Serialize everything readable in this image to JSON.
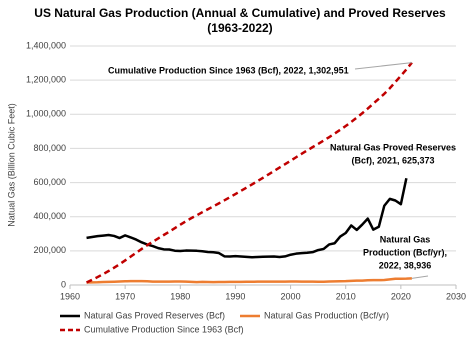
{
  "chart_data": {
    "type": "line",
    "title": [
      "US Natural Gas Production (Annual & Cumulative) and Proved Reserves",
      "(1963-2022)"
    ],
    "y_label": "Natual Gas (Billion Cubic Feet)",
    "x": [
      1963,
      1964,
      1965,
      1966,
      1967,
      1968,
      1969,
      1970,
      1971,
      1972,
      1973,
      1974,
      1975,
      1976,
      1977,
      1978,
      1979,
      1980,
      1981,
      1982,
      1983,
      1984,
      1985,
      1986,
      1987,
      1988,
      1989,
      1990,
      1991,
      1992,
      1993,
      1994,
      1995,
      1996,
      1997,
      1998,
      1999,
      2000,
      2001,
      2002,
      2003,
      2004,
      2005,
      2006,
      2007,
      2008,
      2009,
      2010,
      2011,
      2012,
      2013,
      2014,
      2015,
      2016,
      2017,
      2018,
      2019,
      2020,
      2021,
      2022
    ],
    "series": [
      {
        "name": "Natural Gas Proved Reserves (Bcf)",
        "color": "#000000",
        "dash": false,
        "values": [
          276151,
          281251,
          286469,
          289333,
          292908,
          287350,
          275109,
          290746,
          278806,
          266085,
          249950,
          237132,
          228200,
          216026,
          208878,
          208033,
          200997,
          199021,
          201730,
          201512,
          200247,
          197463,
          193369,
          191586,
          187211,
          168024,
          167116,
          169346,
          167062,
          165015,
          162415,
          163837,
          165146,
          166474,
          167223,
          164041,
          167406,
          177427,
          183460,
          186946,
          189044,
          192513,
          204385,
          211085,
          237726,
          244656,
          283879,
          304625,
          348809,
          322670,
          354034,
          388841,
          324273,
          341084,
          464292,
          504490,
          494911,
          473325,
          625373,
          null
        ]
      },
      {
        "name": "Natural Gas Production (Bcf/yr)",
        "color": "#ed7d31",
        "dash": false,
        "values": [
          15000,
          15500,
          16000,
          17200,
          18200,
          19300,
          20700,
          21900,
          22400,
          22500,
          22600,
          21600,
          20100,
          19900,
          20000,
          19700,
          20500,
          20200,
          19900,
          18500,
          16800,
          18200,
          17200,
          16900,
          17400,
          17900,
          18100,
          18600,
          18500,
          18700,
          18900,
          19700,
          19500,
          19800,
          19900,
          19900,
          19800,
          20200,
          20600,
          19900,
          19900,
          19500,
          18900,
          19400,
          20200,
          21100,
          21600,
          22400,
          24000,
          25300,
          25600,
          27500,
          28800,
          28500,
          29100,
          32700,
          36300,
          36500,
          37300,
          38936
        ]
      },
      {
        "name": "Cumulative Production Since 1963 (Bcf)",
        "color": "#c00000",
        "dash": true,
        "values": [
          15000,
          30500,
          46500,
          63700,
          81900,
          101200,
          121900,
          143800,
          166200,
          188700,
          211300,
          232900,
          253000,
          272900,
          292900,
          312600,
          333100,
          353300,
          373200,
          391700,
          408500,
          426700,
          443900,
          460800,
          478200,
          496100,
          514200,
          532800,
          551300,
          570000,
          588900,
          608600,
          628100,
          647900,
          667800,
          687700,
          707500,
          727700,
          748300,
          768200,
          788100,
          807600,
          826500,
          845900,
          866100,
          887200,
          908800,
          931200,
          955200,
          980500,
          1006100,
          1033600,
          1062400,
          1090900,
          1120000,
          1152700,
          1189000,
          1225500,
          1262800,
          1302951
        ]
      }
    ],
    "annotations": [
      [
        "Cumulative Production Since 1963 (Bcf), 2022,  1,302,951"
      ],
      [
        "Natural Gas Proved Reserves",
        "(Bcf), 2021,  625,373"
      ],
      [
        "Natural Gas",
        "Production (Bcf/yr),",
        "2022,  38,936"
      ]
    ],
    "xlim": [
      1960,
      2030
    ],
    "xticks": [
      1960,
      1970,
      1980,
      1990,
      2000,
      2010,
      2020,
      2030
    ],
    "ylim": [
      0,
      1400000
    ],
    "yticks": [
      0,
      {
        "value": 200000,
        "label": "200,000"
      },
      {
        "value": 400000,
        "label": "400,000"
      },
      {
        "value": 600000,
        "label": "600,000"
      },
      {
        "value": 800000,
        "label": "800,000"
      },
      {
        "value": 1000000,
        "label": "1,000,000"
      },
      {
        "value": 1200000,
        "label": "1,200,000"
      },
      {
        "value": 1400000,
        "label": "1,400,000"
      }
    ],
    "grid": true
  }
}
